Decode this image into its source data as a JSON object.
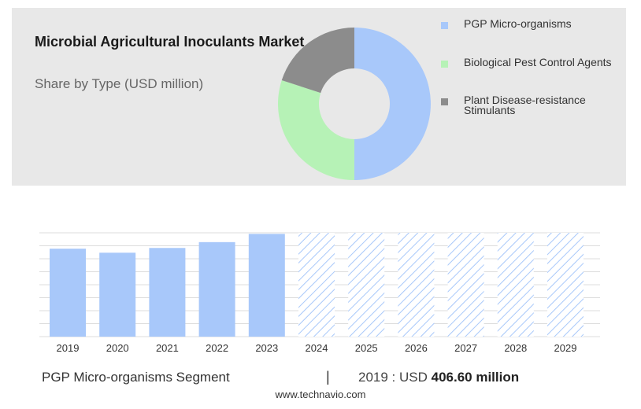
{
  "chart_data": [
    {
      "type": "pie",
      "title": "Microbial Agricultural Inoculants Market",
      "subtitle": "Share by Type (USD million)",
      "series": [
        {
          "name": "PGP Micro-organisms",
          "value": 50,
          "color": "#a8c8fa"
        },
        {
          "name": "Biological Pest Control Agents",
          "value": 30,
          "color": "#b6f2b6"
        },
        {
          "name": "Plant Disease-resistance Stimulants",
          "value": 20,
          "color": "#8c8c8c"
        }
      ],
      "legend_position": "right"
    },
    {
      "type": "bar",
      "categories": [
        "2019",
        "2020",
        "2021",
        "2022",
        "2023",
        "2024",
        "2025",
        "2026",
        "2027",
        "2028",
        "2029"
      ],
      "values": [
        406.6,
        388,
        410,
        437,
        475,
        null,
        null,
        null,
        null,
        null,
        null
      ],
      "forecast_categories": [
        "2024",
        "2025",
        "2026",
        "2027",
        "2028",
        "2029"
      ],
      "ylim": [
        0,
        480
      ],
      "grid": true,
      "color": "#a8c8fa",
      "forecast_style": "hatched"
    }
  ],
  "footer": {
    "segment": "PGP Micro-organisms Segment",
    "separator": "|",
    "value_prefix": "2019 : USD ",
    "value_bold": "406.60 million",
    "url": "www.technavio.com"
  }
}
